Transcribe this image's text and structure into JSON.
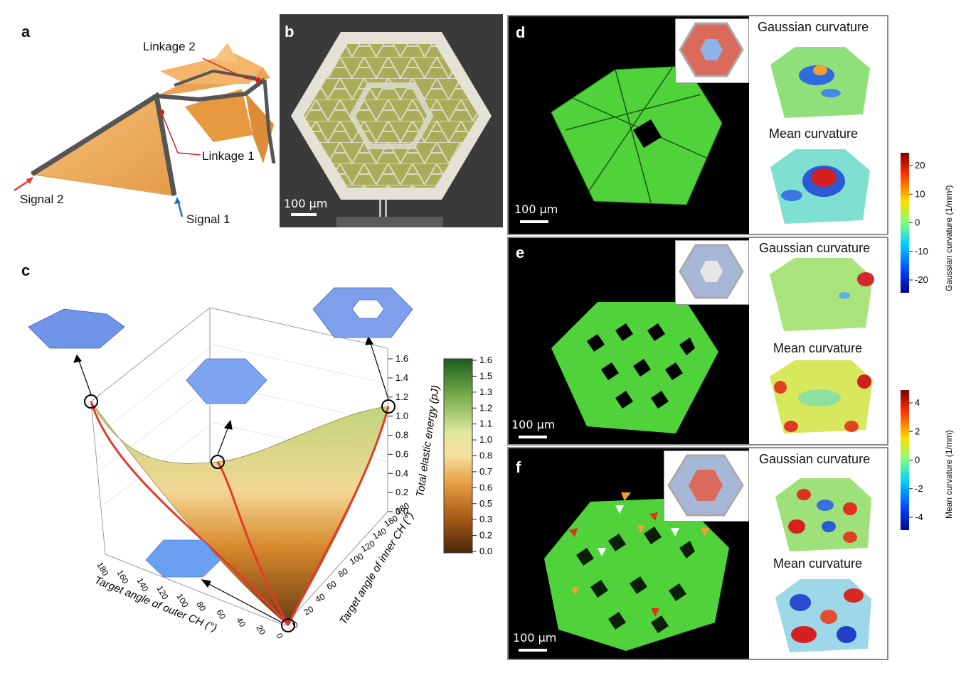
{
  "panels": {
    "a": {
      "label": "a",
      "annotations": {
        "linkage2": "Linkage 2",
        "linkage1": "Linkage 1",
        "signal2": "Signal 2",
        "signal1": "Signal 1"
      }
    },
    "b": {
      "label": "b",
      "scale_text": "100 μm"
    },
    "c": {
      "label": "c",
      "chart_data": {
        "type": "surface",
        "xlabel": "Target angle of outer CH (°)",
        "ylabel": "Target angle of inner CH (°)",
        "zlabel": "Total elastic energy (pJ)",
        "x_ticks": [
          "180",
          "160",
          "140",
          "120",
          "100",
          "80",
          "60",
          "40",
          "20",
          "0"
        ],
        "y_ticks": [
          "0",
          "20",
          "40",
          "60",
          "80",
          "100",
          "120",
          "140",
          "160",
          "180"
        ],
        "z_ticks": [
          "0.0",
          "0.2",
          "0.4",
          "0.6",
          "0.8",
          "1.0",
          "1.2",
          "1.4",
          "1.6"
        ],
        "colorbar_ticks": [
          "1.6",
          "1.5",
          "1.3",
          "1.2",
          "1.1",
          "1.0",
          "0.8",
          "0.7",
          "0.6",
          "0.5",
          "0.3",
          "0.2",
          "0.0"
        ],
        "zlim": [
          0,
          1.6
        ],
        "points": [
          {
            "x": 0,
            "y": 0,
            "z": 0.0
          },
          {
            "x": 180,
            "y": 0,
            "z": 1.2
          },
          {
            "x": 0,
            "y": 180,
            "z": 1.2
          },
          {
            "x": 90,
            "y": 90,
            "z": 0.6
          }
        ]
      }
    },
    "d": {
      "label": "d",
      "scale_text": "100 μm",
      "title_gaussian": "Gaussian curvature",
      "title_mean": "Mean curvature"
    },
    "e": {
      "label": "e",
      "scale_text": "100 μm",
      "title_gaussian": "Gaussian curvature",
      "title_mean": "Mean curvature"
    },
    "f": {
      "label": "f",
      "scale_text": "100 μm",
      "title_gaussian": "Gaussian curvature",
      "title_mean": "Mean curvature"
    }
  },
  "colorbars": {
    "gaussian": {
      "label": "Gaussian curvature (1/mm²)",
      "ticks": [
        "20",
        "10",
        "0",
        "-10",
        "-20"
      ]
    },
    "mean": {
      "label": "Mean curvature (1/mm)",
      "ticks": [
        "4",
        "2",
        "0",
        "-2",
        "-4"
      ]
    }
  },
  "colors": {
    "green_sheet": "#4fd23a",
    "orange_panel": "#f0b060",
    "arrow_red": "#e8382a",
    "frame_gray": "#8a8a8a"
  }
}
